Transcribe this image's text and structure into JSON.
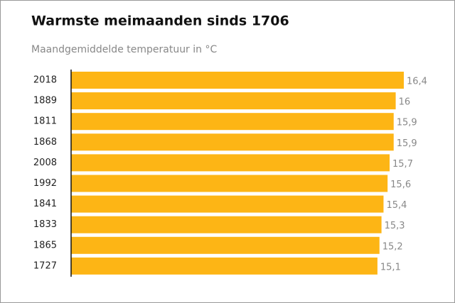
{
  "chart_data": {
    "type": "bar",
    "orientation": "horizontal",
    "title": "Warmste meimaanden sinds 1706",
    "subtitle": "Maandgemiddelde temperatuur in °C",
    "categories": [
      "2018",
      "1889",
      "1811",
      "1868",
      "2008",
      "1992",
      "1841",
      "1833",
      "1865",
      "1727"
    ],
    "values": [
      16.4,
      16,
      15.9,
      15.9,
      15.7,
      15.6,
      15.4,
      15.3,
      15.2,
      15.1
    ],
    "value_labels": [
      "16,4",
      "16",
      "15,9",
      "15,9",
      "15,7",
      "15,6",
      "15,4",
      "15,3",
      "15,2",
      "15,1"
    ],
    "color": "#fdb515"
  }
}
